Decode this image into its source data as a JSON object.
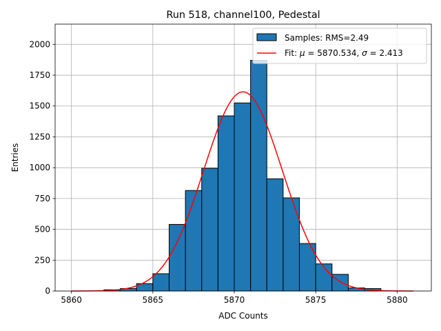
{
  "chart_data": {
    "type": "bar",
    "title": "Run 518, channel100, Pedestal",
    "xlabel": "ADC Counts",
    "ylabel": "Entries",
    "xlim": [
      5859.0,
      5882.1
    ],
    "ylim": [
      0,
      2164
    ],
    "xticks": [
      5860,
      5865,
      5870,
      5875,
      5880
    ],
    "xtick_labels": [
      "5860",
      "5865",
      "5870",
      "5875",
      "5880"
    ],
    "yticks": [
      0,
      250,
      500,
      750,
      1000,
      1250,
      1500,
      1750,
      2000
    ],
    "ytick_labels": [
      "0",
      "250",
      "500",
      "750",
      "1000",
      "1250",
      "1500",
      "1750",
      "2000"
    ],
    "grid": true,
    "legend_position": "upper-right",
    "histogram": {
      "name": "Samples: RMS=2.49",
      "color": "#1f77b4",
      "bin_edges": [
        5860,
        5861,
        5862,
        5863,
        5864,
        5865,
        5866,
        5867,
        5868,
        5869,
        5870,
        5871,
        5872,
        5873,
        5874,
        5875,
        5876,
        5877,
        5878,
        5879,
        5880,
        5881
      ],
      "counts": [
        0,
        0,
        10,
        20,
        60,
        140,
        540,
        815,
        995,
        1420,
        1525,
        1870,
        910,
        755,
        385,
        220,
        135,
        25,
        20,
        0,
        0
      ]
    },
    "fit": {
      "name": "Fit: μ = 5870.534, σ = 2.413",
      "name_parts": {
        "prefix": "Fit: ",
        "mu_symbol": "μ",
        "mu_text": " = 5870.534, ",
        "sigma_symbol": "σ",
        "sigma_text": " = 2.413"
      },
      "color": "#ff0000",
      "mu": 5870.534,
      "sigma": 2.413,
      "amplitude": 1615,
      "x_range": [
        5860,
        5881
      ]
    }
  }
}
